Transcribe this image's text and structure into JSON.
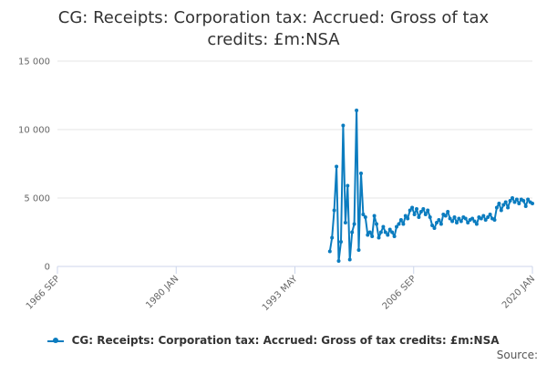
{
  "chart_data": {
    "type": "line",
    "title": "CG: Receipts: Corporation tax: Accrued: Gross of tax credits: £m:NSA",
    "series": [
      {
        "name": "CG: Receipts: Corporation tax: Accrued: Gross of tax credits: £m:NSA",
        "color": "#0b7cbf",
        "x": [
          "1997-04",
          "1997-07",
          "1997-10",
          "1998-01",
          "1998-04",
          "1998-07",
          "1998-10",
          "1999-01",
          "1999-04",
          "1999-07",
          "1999-10",
          "2000-01",
          "2000-04",
          "2000-07",
          "2000-10",
          "2001-01",
          "2001-04",
          "2001-07",
          "2001-10",
          "2002-01",
          "2002-04",
          "2002-07",
          "2002-10",
          "2003-01",
          "2003-04",
          "2003-07",
          "2003-10",
          "2004-01",
          "2004-04",
          "2004-07",
          "2004-10",
          "2005-01",
          "2005-04",
          "2005-07",
          "2005-10",
          "2006-01",
          "2006-04",
          "2006-07",
          "2006-10",
          "2007-01",
          "2007-04",
          "2007-07",
          "2007-10",
          "2008-01",
          "2008-04",
          "2008-07",
          "2008-10",
          "2009-01",
          "2009-04",
          "2009-07",
          "2009-10",
          "2010-01",
          "2010-04",
          "2010-07",
          "2010-10",
          "2011-01",
          "2011-04",
          "2011-07",
          "2011-10",
          "2012-01",
          "2012-04",
          "2012-07",
          "2012-10",
          "2013-01",
          "2013-04",
          "2013-07",
          "2013-10",
          "2014-01",
          "2014-04",
          "2014-07",
          "2014-10",
          "2015-01",
          "2015-04",
          "2015-07",
          "2015-10",
          "2016-01",
          "2016-04",
          "2016-07",
          "2016-10",
          "2017-01",
          "2017-04",
          "2017-07",
          "2017-10",
          "2018-01",
          "2018-04",
          "2018-07",
          "2018-10",
          "2019-01",
          "2019-04",
          "2019-07",
          "2019-10",
          "2020-01"
        ],
        "values": [
          1100,
          2100,
          4100,
          7300,
          400,
          1800,
          10300,
          3200,
          5900,
          500,
          2500,
          3100,
          11400,
          1200,
          6800,
          3800,
          3600,
          2300,
          2500,
          2200,
          3700,
          3100,
          2100,
          2500,
          2900,
          2500,
          2300,
          2700,
          2500,
          2200,
          2900,
          3100,
          3400,
          3100,
          3700,
          3500,
          4100,
          4300,
          3800,
          4200,
          3600,
          4000,
          4200,
          3800,
          4100,
          3600,
          3000,
          2800,
          3200,
          3400,
          3100,
          3800,
          3700,
          4000,
          3500,
          3300,
          3600,
          3200,
          3500,
          3300,
          3600,
          3500,
          3200,
          3400,
          3500,
          3300,
          3100,
          3600,
          3500,
          3700,
          3400,
          3600,
          3800,
          3500,
          3400,
          4300,
          4600,
          4100,
          4500,
          4700,
          4300,
          4800,
          5000,
          4700,
          4900,
          4600,
          4900,
          4800,
          4400,
          4900,
          4700,
          4600
        ]
      }
    ],
    "x_tick_labels": [
      "1966 SEP",
      "1980 JAN",
      "1993 MAY",
      "2006 SEP",
      "2020 JAN"
    ],
    "x_tick_dates": [
      "1966-09",
      "1980-01",
      "1993-05",
      "2006-09",
      "2020-01"
    ],
    "xlim": [
      "1966-09",
      "2020-01"
    ],
    "y_ticks": [
      0,
      5000,
      10000,
      15000
    ],
    "y_tick_labels": [
      "0",
      "5 000",
      "10 000",
      "15 000"
    ],
    "ylim": [
      0,
      15000
    ],
    "grid": "horizontal",
    "legend_position": "bottom"
  },
  "source_label": "Source:"
}
